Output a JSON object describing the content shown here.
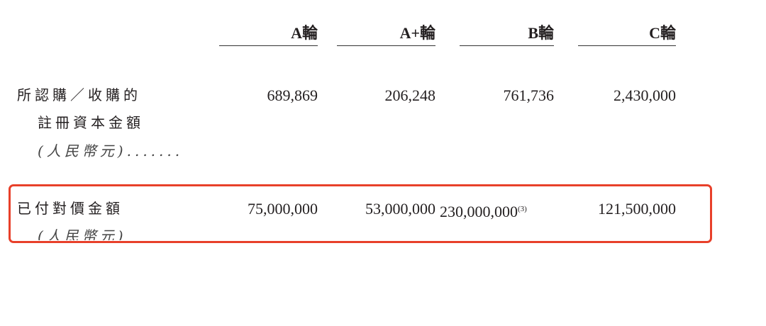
{
  "table": {
    "headers": [
      "A輪",
      "A+輪",
      "B輪",
      "C輪"
    ],
    "rows": [
      {
        "label_lines": [
          "所認購／收購的",
          "註冊資本金額",
          "(人民幣元)......."
        ],
        "values": [
          "689,869",
          "206,248",
          "761,736",
          "2,430,000"
        ]
      },
      {
        "label_lines": [
          "已付對價金額",
          "(人民幣元)"
        ],
        "values": [
          "75,000,000",
          "53,000,000",
          "230,000,000",
          "121,500,000"
        ],
        "footnote_on_value_2": "(3)"
      }
    ]
  },
  "highlight": {
    "color": "#e8402a"
  }
}
